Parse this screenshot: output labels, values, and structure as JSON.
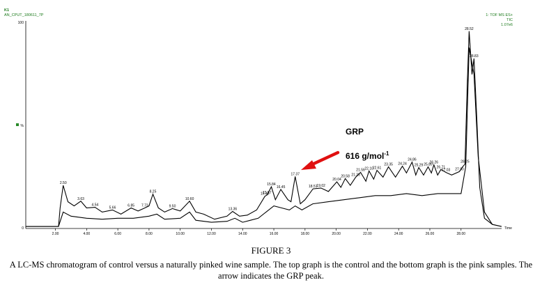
{
  "header": {
    "panel_id": "K1",
    "sample_id": "AN_CPUT_180611_7P",
    "scan_mode": "1: TOF MS ES+",
    "trace_type": "TIC",
    "intensity": "1.07e6"
  },
  "axis": {
    "y_top": "100",
    "y_unit": "%",
    "y_bottom": "0",
    "x_unit": "Time"
  },
  "annotation": {
    "label": "GRP",
    "mass": "616 g/mol",
    "mass_sup": "-1"
  },
  "caption": {
    "title": "FIGURE 3",
    "text": "A LC-MS chromatogram of control versus a naturally pinked wine sample. The top graph is the control and the bottom graph is the pink samples. The arrow indicates the GRP peak."
  },
  "colors": {
    "trace": "#000000",
    "arrow": "#e01010",
    "header_text": "#1b7a1b",
    "marker": "#2a8a2a"
  },
  "chart_data": {
    "type": "line",
    "xlabel": "Time",
    "ylabel": "%",
    "xlim": [
      0.1,
      30.6
    ],
    "ylim": [
      0,
      100
    ],
    "x_ticks": [
      "2.00",
      "4.00",
      "6.00",
      "8.00",
      "10.00",
      "12.00",
      "14.00",
      "16.00",
      "18.00",
      "20.00",
      "22.00",
      "24.00",
      "26.00",
      "28.00"
    ],
    "x_tick_values": [
      2,
      4,
      6,
      8,
      10,
      12,
      14,
      16,
      18,
      20,
      22,
      24,
      26,
      28
    ],
    "peak_labels": [
      {
        "label": "2.50",
        "x": 2.5,
        "y": 21.0
      },
      {
        "label": "3.63",
        "x": 3.63,
        "y": 13.3
      },
      {
        "label": "4.54",
        "x": 4.54,
        "y": 10.3
      },
      {
        "label": "5.66",
        "x": 5.66,
        "y": 9.0
      },
      {
        "label": "6.85",
        "x": 6.85,
        "y": 10.0
      },
      {
        "label": "7.73",
        "x": 7.73,
        "y": 10.0
      },
      {
        "label": "8.25",
        "x": 8.25,
        "y": 16.7
      },
      {
        "label": "9.50",
        "x": 9.5,
        "y": 9.7
      },
      {
        "label": "10.60",
        "x": 10.6,
        "y": 13.3
      },
      {
        "label": "13.36",
        "x": 13.36,
        "y": 8.3
      },
      {
        "label": "15.43",
        "x": 15.43,
        "y": 15.7
      },
      {
        "label": "15.84",
        "x": 15.84,
        "y": 20.3
      },
      {
        "label": "15.57",
        "x": 15.57,
        "y": 16.3
      },
      {
        "label": "16.45",
        "x": 16.45,
        "y": 19.0
      },
      {
        "label": "17.37",
        "x": 17.37,
        "y": 25.3
      },
      {
        "label": "18.51",
        "x": 18.51,
        "y": 19.3
      },
      {
        "label": "19.02",
        "x": 19.02,
        "y": 19.7
      },
      {
        "label": "20.04",
        "x": 20.04,
        "y": 22.7
      },
      {
        "label": "20.58",
        "x": 20.58,
        "y": 24.3
      },
      {
        "label": "21.25",
        "x": 21.25,
        "y": 25.0
      },
      {
        "label": "21.56",
        "x": 21.56,
        "y": 27.3
      },
      {
        "label": "22.10",
        "x": 22.1,
        "y": 28.0
      },
      {
        "label": "22.61",
        "x": 22.61,
        "y": 28.3
      },
      {
        "label": "23.35",
        "x": 23.35,
        "y": 30.0
      },
      {
        "label": "24.24",
        "x": 24.24,
        "y": 30.3
      },
      {
        "label": "24.86",
        "x": 24.86,
        "y": 32.3
      },
      {
        "label": "25.29",
        "x": 25.29,
        "y": 29.7
      },
      {
        "label": "25.89",
        "x": 25.89,
        "y": 30.0
      },
      {
        "label": "26.26",
        "x": 26.26,
        "y": 31.0
      },
      {
        "label": "26.71",
        "x": 26.71,
        "y": 28.7
      },
      {
        "label": "27.03",
        "x": 27.03,
        "y": 27.3
      },
      {
        "label": "27.90",
        "x": 27.9,
        "y": 27.7
      },
      {
        "label": "28.25",
        "x": 28.25,
        "y": 31.3
      },
      {
        "label": "28.52",
        "x": 28.52,
        "y": 96.0
      },
      {
        "label": "28.83",
        "x": 28.83,
        "y": 82.7
      }
    ],
    "series": [
      {
        "name": "control",
        "x": [
          0.1,
          2.2,
          2.3,
          2.5,
          2.8,
          3.2,
          3.63,
          4.0,
          4.54,
          5.0,
          5.66,
          6.2,
          6.85,
          7.3,
          7.73,
          8.0,
          8.25,
          8.6,
          9.0,
          9.5,
          10.0,
          10.6,
          11.0,
          11.5,
          12.2,
          13.0,
          13.36,
          13.8,
          14.3,
          14.9,
          15.43,
          15.57,
          15.84,
          16.1,
          16.45,
          16.9,
          17.1,
          17.37,
          17.7,
          18.0,
          18.51,
          19.02,
          19.5,
          20.04,
          20.3,
          20.58,
          20.9,
          21.25,
          21.56,
          21.9,
          22.1,
          22.4,
          22.61,
          23.0,
          23.35,
          23.8,
          24.24,
          24.5,
          24.86,
          25.1,
          25.29,
          25.6,
          25.89,
          26.1,
          26.26,
          26.5,
          26.71,
          27.03,
          27.4,
          27.9,
          28.1,
          28.25,
          28.4,
          28.52,
          28.7,
          28.83,
          29.0,
          29.2,
          29.5,
          30.0,
          30.6
        ],
        "y": [
          1.0,
          1.0,
          10.0,
          21.0,
          13.0,
          11.0,
          13.3,
          10.0,
          10.3,
          8.0,
          9.0,
          7.0,
          10.0,
          8.5,
          10.0,
          11.0,
          16.7,
          10.0,
          8.0,
          9.7,
          8.5,
          13.3,
          8.0,
          7.0,
          4.5,
          6.0,
          8.3,
          6.0,
          6.5,
          9.0,
          15.7,
          16.3,
          20.3,
          14.0,
          19.0,
          14.0,
          13.0,
          25.3,
          12.0,
          14.0,
          19.3,
          19.7,
          18.0,
          22.7,
          20.0,
          24.3,
          21.0,
          25.0,
          27.3,
          23.0,
          28.0,
          24.0,
          28.3,
          25.0,
          30.0,
          25.0,
          30.3,
          27.0,
          32.3,
          26.0,
          29.7,
          26.0,
          30.0,
          27.0,
          31.0,
          26.0,
          28.7,
          27.3,
          26.0,
          27.7,
          30.0,
          31.3,
          70.0,
          96.0,
          75.0,
          82.7,
          55.0,
          20.0,
          5.0,
          2.0,
          1.0
        ]
      },
      {
        "name": "pink",
        "x": [
          0.1,
          2.2,
          2.5,
          3.0,
          4.0,
          5.0,
          6.0,
          7.0,
          8.0,
          8.5,
          9.0,
          10.0,
          10.6,
          11.0,
          12.0,
          13.0,
          13.5,
          14.0,
          14.5,
          15.0,
          15.5,
          16.0,
          16.5,
          17.0,
          17.37,
          17.8,
          18.5,
          19.5,
          20.5,
          21.5,
          22.5,
          23.5,
          24.5,
          25.5,
          26.5,
          27.5,
          28.0,
          28.3,
          28.52,
          28.83,
          29.1,
          29.5,
          30.0,
          30.6
        ],
        "y": [
          1.0,
          1.0,
          8.0,
          6.0,
          5.0,
          4.5,
          5.0,
          5.0,
          6.0,
          7.0,
          4.5,
          5.0,
          8.0,
          4.0,
          3.0,
          3.5,
          5.0,
          3.0,
          4.0,
          5.0,
          8.0,
          11.0,
          10.0,
          9.0,
          11.0,
          9.0,
          12.0,
          13.0,
          14.0,
          15.0,
          16.0,
          16.0,
          17.0,
          16.0,
          17.0,
          17.0,
          17.0,
          30.0,
          88.0,
          75.0,
          35.0,
          8.0,
          2.0,
          1.0
        ]
      }
    ]
  }
}
